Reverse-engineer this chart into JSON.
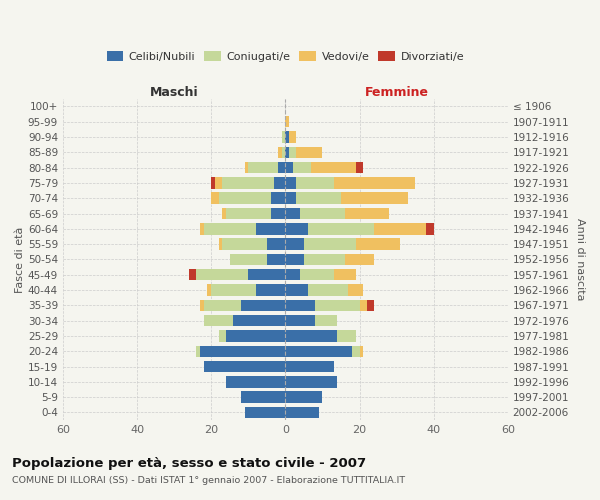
{
  "age_groups": [
    "0-4",
    "5-9",
    "10-14",
    "15-19",
    "20-24",
    "25-29",
    "30-34",
    "35-39",
    "40-44",
    "45-49",
    "50-54",
    "55-59",
    "60-64",
    "65-69",
    "70-74",
    "75-79",
    "80-84",
    "85-89",
    "90-94",
    "95-99",
    "100+"
  ],
  "birth_years": [
    "2002-2006",
    "1997-2001",
    "1992-1996",
    "1987-1991",
    "1982-1986",
    "1977-1981",
    "1972-1976",
    "1967-1971",
    "1962-1966",
    "1957-1961",
    "1952-1956",
    "1947-1951",
    "1942-1946",
    "1937-1941",
    "1932-1936",
    "1927-1931",
    "1922-1926",
    "1917-1921",
    "1912-1916",
    "1907-1911",
    "≤ 1906"
  ],
  "males": {
    "celibe": [
      11,
      12,
      16,
      22,
      23,
      16,
      14,
      12,
      8,
      10,
      5,
      5,
      8,
      4,
      4,
      3,
      2,
      0,
      0,
      0,
      0
    ],
    "coniugato": [
      0,
      0,
      0,
      0,
      1,
      2,
      8,
      10,
      12,
      14,
      10,
      12,
      14,
      12,
      14,
      14,
      8,
      1,
      1,
      0,
      0
    ],
    "vedovo": [
      0,
      0,
      0,
      0,
      0,
      0,
      0,
      1,
      1,
      0,
      0,
      1,
      1,
      1,
      2,
      2,
      1,
      1,
      0,
      0,
      0
    ],
    "divorziato": [
      0,
      0,
      0,
      0,
      0,
      0,
      0,
      0,
      0,
      2,
      0,
      0,
      0,
      0,
      0,
      1,
      0,
      0,
      0,
      0,
      0
    ]
  },
  "females": {
    "nubile": [
      9,
      10,
      14,
      13,
      18,
      14,
      8,
      8,
      6,
      4,
      5,
      5,
      6,
      4,
      3,
      3,
      2,
      1,
      1,
      0,
      0
    ],
    "coniugata": [
      0,
      0,
      0,
      0,
      2,
      5,
      6,
      12,
      11,
      9,
      11,
      14,
      18,
      12,
      12,
      10,
      5,
      2,
      0,
      0,
      0
    ],
    "vedova": [
      0,
      0,
      0,
      0,
      1,
      0,
      0,
      2,
      4,
      6,
      8,
      12,
      14,
      12,
      18,
      22,
      12,
      7,
      2,
      1,
      0
    ],
    "divorziata": [
      0,
      0,
      0,
      0,
      0,
      0,
      0,
      2,
      0,
      0,
      0,
      0,
      2,
      0,
      0,
      0,
      2,
      0,
      0,
      0,
      0
    ]
  },
  "color_celibe": "#3a6fa8",
  "color_coniugato": "#c5d89a",
  "color_vedovo": "#f0c060",
  "color_divorziato": "#c0392b",
  "title": "Popolazione per età, sesso e stato civile - 2007",
  "subtitle": "COMUNE DI ILLORAI (SS) - Dati ISTAT 1° gennaio 2007 - Elaborazione TUTTITALIA.IT",
  "xlabel_left": "Maschi",
  "xlabel_right": "Femmine",
  "ylabel_left": "Fasce di età",
  "ylabel_right": "Anni di nascita",
  "xlim": 60,
  "legend_labels": [
    "Celibi/Nubili",
    "Coniugati/e",
    "Vedovi/e",
    "Divorziati/e"
  ],
  "bg_color": "#f5f5ef",
  "bar_height": 0.75
}
